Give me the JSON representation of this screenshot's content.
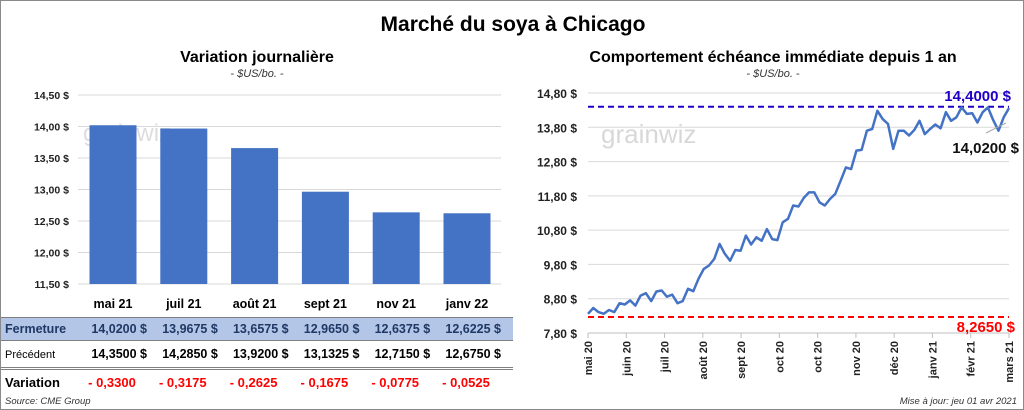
{
  "title": "Marché du soya à Chicago",
  "left": {
    "title": "Variation  journalière",
    "subtitle": "- $US/bo. -",
    "watermark": "grainwiz",
    "table": {
      "columns": [
        "mai 21",
        "juil 21",
        "août 21",
        "sept 21",
        "nov 21",
        "janv 22"
      ],
      "rows": [
        {
          "label": "Fermeture",
          "values": [
            "14,0200  $",
            "13,9675  $",
            "13,6575  $",
            "12,9650  $",
            "12,6375  $",
            "12,6225  $"
          ]
        },
        {
          "label": "Précédent",
          "values": [
            "14,3500  $",
            "14,2850  $",
            "13,9200  $",
            "13,1325  $",
            "12,7150  $",
            "12,6750  $"
          ]
        },
        {
          "label": "Variation",
          "values": [
            "- 0,3300",
            "- 0,3175",
            "- 0,2625",
            "- 0,1675",
            "- 0,0775",
            "- 0,0525"
          ]
        }
      ]
    },
    "source": "Source: CME Group"
  },
  "right": {
    "title": "Comportement  échéance immédiate depuis 1 an",
    "subtitle": "- $US/bo. -",
    "watermark": "grainwiz",
    "updated": "Mise à jour: jeu 01 avr 2021"
  },
  "colors": {
    "bar": "#4472c4",
    "line": "#4472c4",
    "high": "#1f00c8",
    "low": "#ff0000",
    "fermeture_bg": "#b4c6e7",
    "fermeture_text": "#1f3864",
    "variation": "#ff0000"
  },
  "chart_data": [
    {
      "type": "bar",
      "categories": [
        "mai 21",
        "juil 21",
        "août 21",
        "sept 21",
        "nov 21",
        "janv 22"
      ],
      "values": [
        14.02,
        13.9675,
        13.6575,
        12.965,
        12.6375,
        12.6225
      ],
      "ylim": [
        11.5,
        14.5
      ],
      "yticks": [
        "14,50 $",
        "14,00 $",
        "13,50 $",
        "13,00 $",
        "12,50 $",
        "12,00 $",
        "11,50 $"
      ],
      "grid": true
    },
    {
      "type": "line",
      "xticks": [
        "mai 20",
        "juin 20",
        "juil 20",
        "août 20",
        "sept 20",
        "oct 20",
        "oct 20",
        "nov 20",
        "déc 20",
        "janv 21",
        "févr 21",
        "mars 21"
      ],
      "yticks": [
        "14,80 $",
        "13,80 $",
        "12,80 $",
        "11,80 $",
        "10,80 $",
        "9,80 $",
        "8,80 $",
        "7,80 $"
      ],
      "ylim": [
        7.8,
        14.8
      ],
      "values": [
        8.36,
        8.53,
        8.41,
        8.36,
        8.47,
        8.41,
        8.67,
        8.63,
        8.75,
        8.6,
        8.89,
        8.96,
        8.73,
        9.01,
        9.04,
        8.86,
        8.92,
        8.67,
        8.73,
        9.09,
        9.02,
        9.38,
        9.67,
        9.77,
        9.96,
        10.4,
        10.11,
        9.91,
        10.22,
        10.2,
        10.64,
        10.38,
        10.59,
        10.49,
        10.83,
        10.54,
        10.51,
        11.03,
        11.13,
        11.52,
        11.49,
        11.74,
        11.9,
        11.9,
        11.61,
        11.52,
        11.71,
        11.86,
        12.24,
        12.63,
        12.58,
        13.12,
        13.14,
        13.7,
        13.75,
        14.28,
        14.04,
        13.9,
        13.17,
        13.7,
        13.7,
        13.56,
        13.72,
        13.99,
        13.6,
        13.75,
        13.88,
        13.77,
        14.24,
        13.99,
        14.09,
        14.38,
        14.19,
        14.21,
        13.94,
        14.24,
        14.38,
        14.01,
        13.7,
        14.09,
        14.36
      ],
      "high": {
        "value": 14.4,
        "label": "14,4000 $"
      },
      "low": {
        "value": 8.265,
        "label": "8,2650 $"
      },
      "last_label": "14,0200 $",
      "grid": true
    }
  ]
}
